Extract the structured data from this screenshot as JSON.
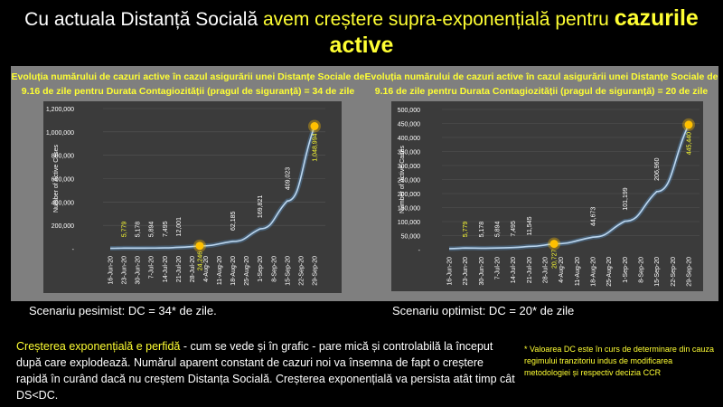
{
  "title": {
    "part1": "Cu actuala Distanță Socială ",
    "part2": "avem creștere supra-exponențială pentru ",
    "part3": "cazurile active"
  },
  "colors": {
    "accent": "#ffff33",
    "panel": "#7f7f7f",
    "plot_bg": "#3b3b3b",
    "line": "#5b9bd5",
    "marker": "#ffc000"
  },
  "chart_data": [
    {
      "type": "line",
      "title": "Evoluția numărului de cazuri active în cazul asigurării unei Distanțe Sociale de 9.16 de zile pentru Durata Contagiozității (pragul de siguranță) = 34 de zile",
      "ylabel": "Number of Active Cases",
      "ylim": [
        0,
        1200000
      ],
      "yticks": [
        "-",
        "200,000",
        "400,000",
        "600,000",
        "800,000",
        "1,000,000",
        "1,200,000"
      ],
      "ytick_values": [
        0,
        200000,
        400000,
        600000,
        800000,
        1000000,
        1200000
      ],
      "xticks": [
        "16-Jun-20",
        "23-Jun-20",
        "30-Jun-20",
        "7-Jul-20",
        "14-Jul-20",
        "21-Jul-20",
        "28-Jul-20",
        "4-Aug-20",
        "11-Aug-20",
        "18-Aug-20",
        "25-Aug-20",
        "1-Sep-20",
        "8-Sep-20",
        "15-Sep-20",
        "22-Sep-20",
        "29-Sep-20"
      ],
      "points": [
        {
          "x": "16-Jun-20",
          "y": 3500
        },
        {
          "x": "23-Jun-20",
          "y": 5779,
          "label": "5,779",
          "hl": true
        },
        {
          "x": "30-Jun-20",
          "y": 5178,
          "label": "5,178"
        },
        {
          "x": "7-Jul-20",
          "y": 5894,
          "label": "5,894"
        },
        {
          "x": "14-Jul-20",
          "y": 7495,
          "label": "7,495"
        },
        {
          "x": "21-Jul-20",
          "y": 12001,
          "label": "12,001"
        },
        {
          "x": "1-Aug-20",
          "y": 24246,
          "label": "24,246",
          "hl": true,
          "marker": true
        },
        {
          "x": "18-Aug-20",
          "y": 62185,
          "label": "62,185"
        },
        {
          "x": "1-Sep-20",
          "y": 169821,
          "label": "169,821"
        },
        {
          "x": "15-Sep-20",
          "y": 409023,
          "label": "409,023"
        },
        {
          "x": "29-Sep-20",
          "y": 1048994,
          "label": "1,048,994",
          "hl": true,
          "marker": true
        }
      ]
    },
    {
      "type": "line",
      "title": "Evoluția numărului de cazuri active în cazul asigurării unei Distanțe Sociale de 9.16 de zile pentru Durata Contagiozității (pragul de siguranță) = 20 de zile",
      "ylabel": "Number of Active Cases",
      "ylim": [
        0,
        500000
      ],
      "yticks": [
        "-",
        "50,000",
        "100,000",
        "150,000",
        "200,000",
        "250,000",
        "300,000",
        "350,000",
        "400,000",
        "450,000",
        "500,000"
      ],
      "ytick_values": [
        0,
        50000,
        100000,
        150000,
        200000,
        250000,
        300000,
        350000,
        400000,
        450000,
        500000
      ],
      "xticks": [
        "16-Jun-20",
        "23-Jun-20",
        "30-Jun-20",
        "7-Jul-20",
        "14-Jul-20",
        "21-Jul-20",
        "28-Jul-20",
        "4-Aug-20",
        "11-Aug-20",
        "18-Aug-20",
        "25-Aug-20",
        "1-Sep-20",
        "8-Sep-20",
        "15-Sep-20",
        "22-Sep-20",
        "29-Sep-20"
      ],
      "points": [
        {
          "x": "16-Jun-20",
          "y": 3500
        },
        {
          "x": "23-Jun-20",
          "y": 5779,
          "label": "5,779",
          "hl": true
        },
        {
          "x": "30-Jun-20",
          "y": 5178,
          "label": "5,178"
        },
        {
          "x": "7-Jul-20",
          "y": 5894,
          "label": "5,894"
        },
        {
          "x": "14-Jul-20",
          "y": 7495,
          "label": "7,495"
        },
        {
          "x": "21-Jul-20",
          "y": 11545,
          "label": "11,545"
        },
        {
          "x": "1-Aug-20",
          "y": 20727,
          "label": "20,727",
          "hl": true,
          "marker": true
        },
        {
          "x": "18-Aug-20",
          "y": 44673,
          "label": "44,673"
        },
        {
          "x": "1-Sep-20",
          "y": 101199,
          "label": "101,199"
        },
        {
          "x": "15-Sep-20",
          "y": 206960,
          "label": "206,960"
        },
        {
          "x": "29-Sep-20",
          "y": 445440,
          "label": "445,440",
          "hl": true,
          "marker": true
        }
      ]
    }
  ],
  "scenario_left": "Scenariu pesimist: DC = 34* de zile.",
  "scenario_right": "Scenariu optimist: DC = 20* de zile",
  "body": {
    "highlight": "Creșterea exponențială e perfidă",
    "rest": " - cum se vede și în grafic - pare mică și controlabilă la început după care explodează. Numărul aparent constant de cazuri noi va însemna de fapt o creștere rapidă în curând dacă nu creștem Distanța Socială.  Creșterea exponențială va persista atât timp cât DS<DC."
  },
  "note": "* Valoarea DC este în curs de determinare din cauza regimului tranzitoriu indus de modificarea metodologiei și respectiv decizia CCR"
}
